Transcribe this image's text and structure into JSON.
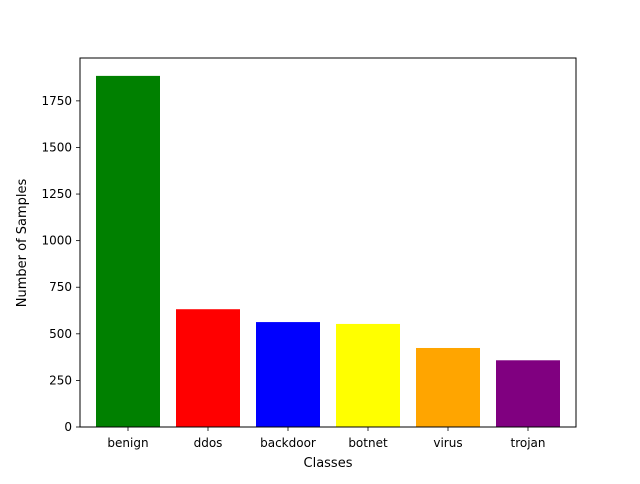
{
  "chart_data": {
    "type": "bar",
    "title": "",
    "xlabel": "Classes",
    "ylabel": "Number of Samples",
    "categories": [
      "benign",
      "ddos",
      "backdoor",
      "botnet",
      "virus",
      "trojan"
    ],
    "values": [
      1884,
      632,
      563,
      553,
      424,
      358
    ],
    "colors": [
      "#008000",
      "#ff0000",
      "#0000ff",
      "#ffff00",
      "#ffa500",
      "#800080"
    ],
    "ylim": [
      0,
      1980
    ],
    "yticks": [
      0,
      250,
      500,
      750,
      1000,
      1250,
      1500,
      1750
    ],
    "grid": false,
    "legend": "none"
  }
}
